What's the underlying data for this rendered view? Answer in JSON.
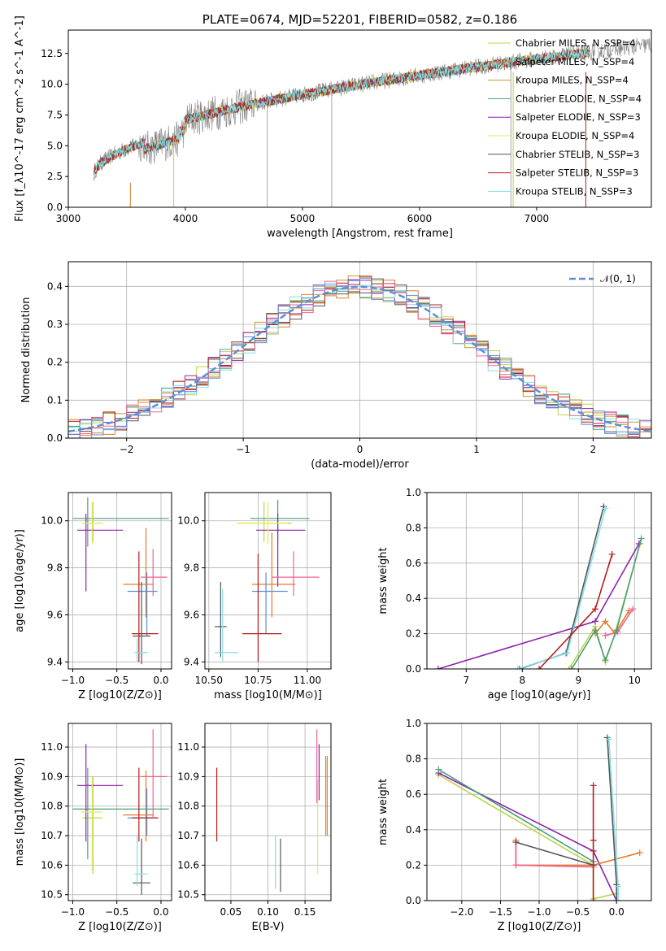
{
  "colors": [
    "#bcd44a",
    "#e07b28",
    "#c8962a",
    "#4a9e7a",
    "#8e24aa",
    "#e6e85a",
    "#555555",
    "#b71c1c",
    "#80deea",
    "#f06292",
    "#5b8fd8"
  ],
  "chart_data": [
    {
      "type": "line",
      "title": "PLATE=0674, MJD=52201, FIBERID=0582, z=0.186",
      "xlabel": "wavelength [Angstrom, rest frame]",
      "ylabel": "Flux [f_λ10^-17 erg cm^-2 s^-1 A^-1]",
      "xlim": [
        3000,
        7980
      ],
      "ylim": [
        0,
        14.4
      ],
      "xticks": [
        "3000",
        "4000",
        "5000",
        "6000",
        "7000"
      ],
      "yticks": [
        "0.0",
        "2.5",
        "5.0",
        "7.5",
        "10.0",
        "12.5"
      ],
      "grid": false,
      "legend_position": "upper-right",
      "legend": [
        "Chabrier MILES, N_SSP=4",
        "Salpeter MILES, N_SSP=4",
        "Kroupa MILES, N_SSP=4",
        "Chabrier ELODIE, N_SSP=4",
        "Salpeter ELODIE, N_SSP=3",
        "Kroupa ELODIE, N_SSP=4",
        "Chabrier STELIB, N_SSP=3",
        "Salpeter STELIB, N_SSP=3",
        "Kroupa STELIB, N_SSP=3"
      ],
      "data_series": {
        "name": "data",
        "x_range": [
          3220,
          7980
        ],
        "y_start": 2.6,
        "y_end": 11.8
      },
      "model_series": {
        "x_range": [
          3220,
          7450
        ],
        "y_start": 2.7,
        "y_end": 11.8
      }
    },
    {
      "type": "histogram",
      "xlabel": "(data-model)/error",
      "ylabel": "Normed distribution",
      "xlim": [
        -2.5,
        2.5
      ],
      "ylim": [
        0,
        0.465
      ],
      "xticks": [
        "−2",
        "−1",
        "0",
        "1",
        "2"
      ],
      "yticks": [
        "0.0",
        "0.1",
        "0.2",
        "0.3",
        "0.4"
      ],
      "grid": true,
      "legend_position": "upper-right",
      "legend": [
        "𝒩(0, 1)"
      ],
      "bin_width": 0.1
    },
    {
      "type": "errorbar",
      "xlabel": "Z [log10(Z/Z⊙)]",
      "ylabel": "age  [log10(age/yr)]",
      "xlim": [
        -1.05,
        0.12
      ],
      "ylim": [
        9.37,
        10.12
      ],
      "xticks": [
        "−1.0",
        "−0.5",
        "0.0"
      ],
      "yticks": [
        "9.4",
        "9.6",
        "9.8",
        "10.0"
      ],
      "grid": true,
      "points": [
        {
          "x": -0.77,
          "xerr": [
            0.12,
            0.11
          ],
          "y": 9.99,
          "yerr": [
            0.08,
            0.09
          ],
          "c": 0
        },
        {
          "x": -0.17,
          "xerr": [
            0.26,
            0.08
          ],
          "y": 9.73,
          "yerr": [
            0.14,
            0.24
          ],
          "c": 1
        },
        {
          "x": -0.16,
          "xerr": [
            0.22,
            0.12
          ],
          "y": 9.7,
          "yerr": [
            0.19,
            0.08
          ],
          "c": 10
        },
        {
          "x": -0.83,
          "xerr": [
            0.17,
            0.92
          ],
          "y": 10.01,
          "yerr": [
            0.12,
            0.09
          ],
          "c": 3
        },
        {
          "x": -0.85,
          "xerr": [
            0.1,
            0.42
          ],
          "y": 9.96,
          "yerr": [
            0.26,
            0.07
          ],
          "c": 4
        },
        {
          "x": -0.78,
          "xerr": [
            0.12,
            0.11
          ],
          "y": 9.99,
          "yerr": [
            0.09,
            0.09
          ],
          "c": 5
        },
        {
          "x": -0.22,
          "xerr": [
            0.1,
            0.1
          ],
          "y": 9.51,
          "yerr": [
            0.12,
            0.23
          ],
          "c": 6
        },
        {
          "x": -0.25,
          "xerr": [
            0.08,
            0.22
          ],
          "y": 9.52,
          "yerr": [
            0.12,
            0.35
          ],
          "c": 7
        },
        {
          "x": -0.27,
          "xerr": [
            0.03,
            0.12
          ],
          "y": 9.44,
          "yerr": [
            0.04,
            0.06
          ],
          "c": 8
        },
        {
          "x": -0.09,
          "xerr": [
            0.14,
            0.16
          ],
          "y": 9.76,
          "yerr": [
            0.08,
            0.12
          ],
          "c": 9
        }
      ]
    },
    {
      "type": "errorbar",
      "xlabel": "mass [log10(M/M⊙)]",
      "ylabel": "",
      "xlim": [
        10.48,
        11.12
      ],
      "ylim": [
        9.37,
        10.12
      ],
      "xticks": [
        "10.50",
        "10.75",
        "11.00"
      ],
      "yticks": [
        "9.4",
        "9.6",
        "9.8",
        "10.0"
      ],
      "grid": true,
      "points": [
        {
          "x": 10.78,
          "xerr": [
            0.13,
            0.14
          ],
          "y": 9.99,
          "yerr": [
            0.08,
            0.09
          ],
          "c": 0
        },
        {
          "x": 10.82,
          "xerr": [
            0.1,
            0.12
          ],
          "y": 9.73,
          "yerr": [
            0.14,
            0.22
          ],
          "c": 1
        },
        {
          "x": 10.79,
          "xerr": [
            0.07,
            0.11
          ],
          "y": 9.7,
          "yerr": [
            0.18,
            0.08
          ],
          "c": 10
        },
        {
          "x": 10.85,
          "xerr": [
            0.14,
            0.16
          ],
          "y": 10.01,
          "yerr": [
            0.1,
            0.08
          ],
          "c": 3
        },
        {
          "x": 10.85,
          "xerr": [
            0.11,
            0.14
          ],
          "y": 9.96,
          "yerr": [
            0.24,
            0.07
          ],
          "c": 4
        },
        {
          "x": 10.8,
          "xerr": [
            0.16,
            0.1
          ],
          "y": 9.99,
          "yerr": [
            0.09,
            0.09
          ],
          "c": 5
        },
        {
          "x": 10.56,
          "xerr": [
            0.03,
            0.03
          ],
          "y": 9.55,
          "yerr": [
            0.13,
            0.19
          ],
          "c": 6
        },
        {
          "x": 10.75,
          "xerr": [
            0.08,
            0.12
          ],
          "y": 9.52,
          "yerr": [
            0.12,
            0.34
          ],
          "c": 7
        },
        {
          "x": 10.57,
          "xerr": [
            0.04,
            0.08
          ],
          "y": 9.44,
          "yerr": [
            0.04,
            0.27
          ],
          "c": 8
        },
        {
          "x": 10.93,
          "xerr": [
            0.11,
            0.13
          ],
          "y": 9.76,
          "yerr": [
            0.08,
            0.11
          ],
          "c": 9
        }
      ]
    },
    {
      "type": "line",
      "xlabel": "age  [log10(age/yr)]",
      "ylabel": "mass weight",
      "xlim": [
        6.3,
        10.3
      ],
      "ylim": [
        0,
        1.0
      ],
      "xticks": [
        "7",
        "8",
        "9",
        "10"
      ],
      "yticks": [
        "0.0",
        "0.2",
        "0.4",
        "0.6",
        "0.8",
        "1.0"
      ],
      "grid": true,
      "series": [
        {
          "c": 0,
          "x": [
            8.83,
            9.3,
            9.48,
            9.65,
            10.1
          ],
          "y": [
            0.0,
            0.24,
            0.04,
            0.2,
            0.71
          ]
        },
        {
          "c": 4,
          "x": [
            6.5,
            9.3,
            10.08
          ],
          "y": [
            0.0,
            0.27,
            0.71
          ]
        },
        {
          "c": 1,
          "x": [
            9.3,
            9.48,
            9.65,
            9.9
          ],
          "y": [
            0.2,
            0.27,
            0.2,
            0.33
          ]
        },
        {
          "c": 6,
          "x": [
            7.95,
            8.78,
            9.45
          ],
          "y": [
            0.0,
            0.09,
            0.92
          ]
        },
        {
          "c": 8,
          "x": [
            7.92,
            8.8,
            9.48
          ],
          "y": [
            0.0,
            0.09,
            0.91
          ]
        },
        {
          "c": 7,
          "x": [
            8.3,
            9.3,
            9.6
          ],
          "y": [
            0.0,
            0.34,
            0.65
          ]
        },
        {
          "c": 9,
          "x": [
            9.48,
            9.7,
            9.97
          ],
          "y": [
            0.19,
            0.21,
            0.34
          ]
        },
        {
          "c": 3,
          "x": [
            8.88,
            9.3,
            9.48,
            9.68,
            10.12
          ],
          "y": [
            0.0,
            0.22,
            0.05,
            0.22,
            0.74
          ]
        }
      ]
    },
    {
      "type": "errorbar",
      "xlabel": "Z [log10(Z/Z⊙)]",
      "ylabel": "mass [log10(M/M⊙)]",
      "xlim": [
        -1.05,
        0.12
      ],
      "ylim": [
        10.48,
        11.08
      ],
      "xticks": [
        "−1.0",
        "−0.5",
        "0.0"
      ],
      "yticks": [
        "10.5",
        "10.6",
        "10.7",
        "10.8",
        "10.9",
        "11.0"
      ],
      "grid": true,
      "points": [
        {
          "x": -0.77,
          "xerr": [
            0.12,
            0.11
          ],
          "y": 10.76,
          "yerr": [
            0.19,
            0.14
          ],
          "c": 0
        },
        {
          "x": -0.17,
          "xerr": [
            0.26,
            0.08
          ],
          "y": 10.77,
          "yerr": [
            0.09,
            0.15
          ],
          "c": 1
        },
        {
          "x": -0.16,
          "xerr": [
            0.22,
            0.12
          ],
          "y": 10.76,
          "yerr": [
            0.06,
            0.1
          ],
          "c": 10
        },
        {
          "x": -0.83,
          "xerr": [
            0.17,
            0.92
          ],
          "y": 10.79,
          "yerr": [
            0.17,
            0.14
          ],
          "c": 3
        },
        {
          "x": -0.85,
          "xerr": [
            0.1,
            0.42
          ],
          "y": 10.87,
          "yerr": [
            0.19,
            0.14
          ],
          "c": 4
        },
        {
          "x": -0.78,
          "xerr": [
            0.12,
            0.11
          ],
          "y": 10.78,
          "yerr": [
            0.2,
            0.12
          ],
          "c": 5
        },
        {
          "x": -0.22,
          "xerr": [
            0.1,
            0.1
          ],
          "y": 10.54,
          "yerr": [
            0.04,
            0.15
          ],
          "c": 6
        },
        {
          "x": -0.25,
          "xerr": [
            0.08,
            0.22
          ],
          "y": 10.76,
          "yerr": [
            0.08,
            0.17
          ],
          "c": 7
        },
        {
          "x": -0.27,
          "xerr": [
            0.03,
            0.12
          ],
          "y": 10.57,
          "yerr": [
            0.04,
            0.13
          ],
          "c": 8
        },
        {
          "x": -0.09,
          "xerr": [
            0.14,
            0.16
          ],
          "y": 10.9,
          "yerr": [
            0.14,
            0.16
          ],
          "c": 9
        }
      ]
    },
    {
      "type": "errorbar",
      "xlabel": "E(B-V)",
      "ylabel": "",
      "xlim": [
        0.015,
        0.185
      ],
      "ylim": [
        10.48,
        11.08
      ],
      "xticks": [
        "0.05",
        "0.10",
        "0.15"
      ],
      "yticks": [
        "10.5",
        "10.6",
        "10.7",
        "10.8",
        "10.9",
        "11.0"
      ],
      "grid": true,
      "points": [
        {
          "x": 0.031,
          "y": 10.8,
          "yerr": [
            0.12,
            0.13
          ],
          "c": 7
        },
        {
          "x": 0.11,
          "y": 10.61,
          "yerr": [
            0.09,
            0.09
          ],
          "c": 8
        },
        {
          "x": 0.117,
          "y": 10.6,
          "yerr": [
            0.09,
            0.09
          ],
          "c": 6
        },
        {
          "x": 0.167,
          "y": 10.75,
          "yerr": [
            0.18,
            0.14
          ],
          "c": 5
        },
        {
          "x": 0.166,
          "y": 10.86,
          "yerr": [
            0.05,
            0.2
          ],
          "c": 9
        },
        {
          "x": 0.169,
          "y": 10.9,
          "yerr": [
            0.08,
            0.11
          ],
          "c": 4
        },
        {
          "x": 0.178,
          "y": 10.82,
          "yerr": [
            0.12,
            0.15
          ],
          "c": 1
        },
        {
          "x": 0.18,
          "y": 10.83,
          "yerr": [
            0.13,
            0.14
          ],
          "c": 2
        }
      ]
    },
    {
      "type": "line",
      "xlabel": "Z [log10(Z/Z⊙)]",
      "ylabel": "mass weight",
      "xlim": [
        -2.45,
        0.45
      ],
      "ylim": [
        0,
        1.0
      ],
      "xticks": [
        "−2.0",
        "−1.5",
        "−1.0",
        "−0.5",
        "0.0"
      ],
      "yticks": [
        "0.0",
        "0.2",
        "0.4",
        "0.6",
        "0.8",
        "1.0"
      ],
      "grid": true,
      "series": [
        {
          "c": 0,
          "x": [
            -2.3,
            -0.3,
            -0.3,
            0.0
          ],
          "y": [
            0.71,
            0.2,
            0.01,
            0.04
          ]
        },
        {
          "c": 4,
          "x": [
            -2.3,
            -0.3,
            0.0
          ],
          "y": [
            0.72,
            0.28,
            0.0
          ]
        },
        {
          "c": 3,
          "x": [
            -2.3,
            -0.3
          ],
          "y": [
            0.74,
            0.22
          ]
        },
        {
          "c": 1,
          "x": [
            -1.3,
            -1.3,
            -0.3,
            0.3
          ],
          "y": [
            0.34,
            0.2,
            0.2,
            0.27
          ]
        },
        {
          "c": 9,
          "x": [
            -1.3,
            -1.3,
            -0.3
          ],
          "y": [
            0.33,
            0.2,
            0.19
          ]
        },
        {
          "c": 6,
          "x": [
            -1.3,
            -0.3
          ],
          "y": [
            0.33,
            0.2
          ]
        },
        {
          "c": 7,
          "x": [
            -0.3,
            -0.3,
            -0.3,
            -0.3
          ],
          "y": [
            0.65,
            0.34,
            0.28,
            0.0
          ]
        },
        {
          "c": 6,
          "x": [
            -0.12,
            0.0,
            0.0
          ],
          "y": [
            0.92,
            0.09,
            0.0
          ]
        },
        {
          "c": 8,
          "x": [
            -0.1,
            0.02,
            0.02
          ],
          "y": [
            0.91,
            0.08,
            0.0
          ]
        }
      ]
    }
  ]
}
